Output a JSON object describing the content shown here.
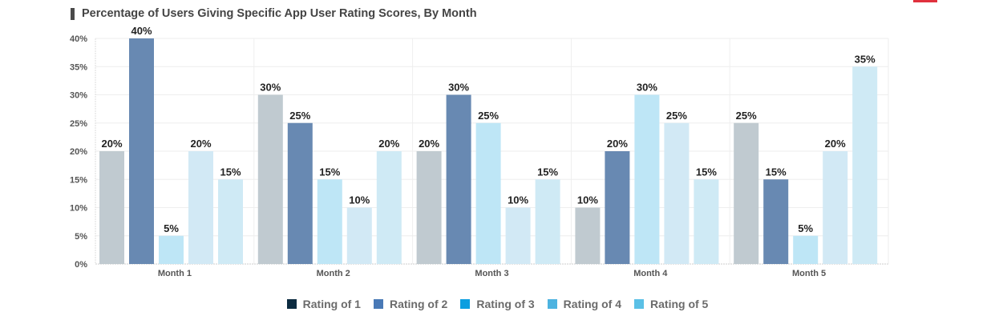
{
  "header": {
    "title": "Percentage of Users Giving Specific App User Rating Scores, By Month",
    "accent_color": "#e0313d"
  },
  "chart_data": {
    "type": "bar",
    "title": "Percentage of Users Giving Specific App User Rating Scores, By Month",
    "xlabel": "",
    "ylabel": "",
    "ylim": [
      0,
      40
    ],
    "y_ticks": [
      "0%",
      "5%",
      "10%",
      "15%",
      "20%",
      "25%",
      "30%",
      "35%",
      "40%"
    ],
    "categories": [
      "Month 1",
      "Month 2",
      "Month 3",
      "Month 4",
      "Month 5"
    ],
    "series": [
      {
        "name": "Rating of 1",
        "values": [
          20,
          30,
          20,
          10,
          25
        ],
        "labels": [
          "20%",
          "30%",
          "20%",
          "10%",
          "25%"
        ],
        "color": "#c0cad0",
        "legend_color": "#0c2b40"
      },
      {
        "name": "Rating of 2",
        "values": [
          40,
          25,
          30,
          20,
          15
        ],
        "labels": [
          "40%",
          "25%",
          "30%",
          "20%",
          "15%"
        ],
        "color": "#6889b2",
        "legend_color": "#4979b6"
      },
      {
        "name": "Rating of 3",
        "values": [
          5,
          15,
          25,
          30,
          5
        ],
        "labels": [
          "5%",
          "15%",
          "25%",
          "30%",
          "5%"
        ],
        "color": "#bee6f6",
        "legend_color": "#0b9ee0"
      },
      {
        "name": "Rating of 4",
        "values": [
          20,
          10,
          10,
          25,
          20
        ],
        "labels": [
          "20%",
          "10%",
          "10%",
          "25%",
          "20%"
        ],
        "color": "#d2e9f5",
        "legend_color": "#4db3e0"
      },
      {
        "name": "Rating of 5",
        "values": [
          15,
          20,
          15,
          15,
          35
        ],
        "labels": [
          "15%",
          "20%",
          "15%",
          "15%",
          "35%"
        ],
        "color": "#cfeaf5",
        "legend_color": "#5bc0e6"
      }
    ],
    "grid": true,
    "legend_position": "bottom-center"
  }
}
